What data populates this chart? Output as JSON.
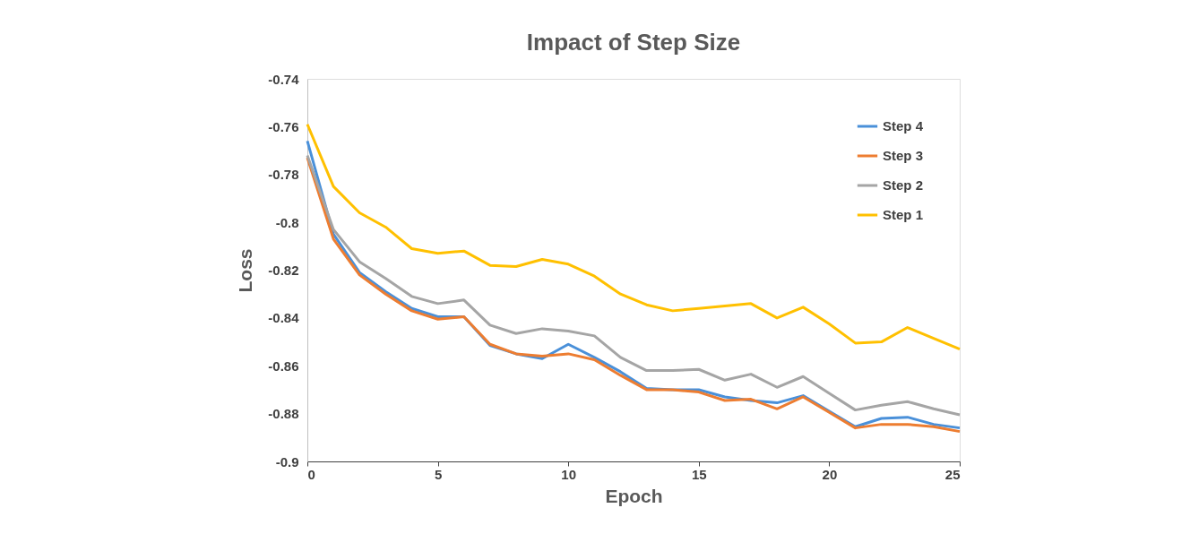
{
  "chart_data": {
    "type": "line",
    "title": "Impact of Step Size",
    "xlabel": "Epoch",
    "ylabel": "Loss",
    "x": [
      0,
      1,
      2,
      3,
      4,
      5,
      6,
      7,
      8,
      9,
      10,
      11,
      12,
      13,
      14,
      15,
      16,
      17,
      18,
      19,
      20,
      21,
      22,
      23,
      24,
      25
    ],
    "xlim": [
      0,
      25
    ],
    "xticks": [
      0,
      5,
      10,
      15,
      20,
      25
    ],
    "ylim": [
      -0.9,
      -0.74
    ],
    "yticks": [
      -0.9,
      -0.88,
      -0.86,
      -0.84,
      -0.82,
      -0.8,
      -0.78,
      -0.76,
      -0.74
    ],
    "grid": false,
    "legend": "top right",
    "marker": "none",
    "line_style": "solid",
    "series": [
      {
        "name": "Step 4",
        "color": "#4a90d9",
        "values": [
          -0.766,
          -0.805,
          -0.821,
          -0.829,
          -0.836,
          -0.8395,
          -0.8395,
          -0.8515,
          -0.855,
          -0.857,
          -0.851,
          -0.8565,
          -0.8625,
          -0.8695,
          -0.87,
          -0.87,
          -0.873,
          -0.8745,
          -0.8755,
          -0.8725,
          -0.879,
          -0.8855,
          -0.882,
          -0.8815,
          -0.8845,
          -0.886
        ]
      },
      {
        "name": "Step 3",
        "color": "#ed7d31",
        "values": [
          -0.773,
          -0.807,
          -0.822,
          -0.83,
          -0.837,
          -0.8405,
          -0.8395,
          -0.851,
          -0.855,
          -0.856,
          -0.855,
          -0.8575,
          -0.864,
          -0.87,
          -0.87,
          -0.871,
          -0.8745,
          -0.874,
          -0.878,
          -0.873,
          -0.8795,
          -0.886,
          -0.8845,
          -0.8845,
          -0.8855,
          -0.8875
        ]
      },
      {
        "name": "Step 2",
        "color": "#a5a5a5",
        "values": [
          -0.772,
          -0.803,
          -0.8165,
          -0.8235,
          -0.831,
          -0.834,
          -0.8325,
          -0.843,
          -0.8465,
          -0.8445,
          -0.8455,
          -0.8475,
          -0.8565,
          -0.862,
          -0.862,
          -0.8615,
          -0.866,
          -0.8635,
          -0.869,
          -0.8645,
          -0.8715,
          -0.8785,
          -0.8765,
          -0.875,
          -0.878,
          -0.8805
        ]
      },
      {
        "name": "Step 1",
        "color": "#ffc000",
        "values": [
          -0.759,
          -0.785,
          -0.796,
          -0.802,
          -0.811,
          -0.813,
          -0.812,
          -0.818,
          -0.8185,
          -0.8155,
          -0.8175,
          -0.8225,
          -0.83,
          -0.8345,
          -0.837,
          -0.836,
          -0.835,
          -0.834,
          -0.84,
          -0.8355,
          -0.8425,
          -0.8505,
          -0.85,
          -0.844,
          -0.8485,
          -0.853
        ]
      }
    ]
  }
}
